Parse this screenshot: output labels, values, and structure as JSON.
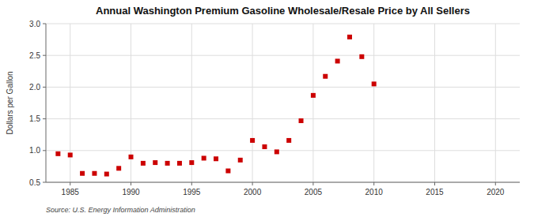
{
  "chart_data": {
    "type": "scatter",
    "title": "Annual Washington Premium Gasoline Wholesale/Resale Price by All Sellers",
    "ylabel": "Dollars per Gallon",
    "source": "Source: U.S. Energy Information Administration",
    "x": [
      1984,
      1985,
      1986,
      1987,
      1988,
      1989,
      1990,
      1991,
      1992,
      1993,
      1994,
      1995,
      1996,
      1997,
      1998,
      1999,
      2000,
      2001,
      2002,
      2003,
      2004,
      2005,
      2006,
      2007,
      2008,
      2009,
      2010
    ],
    "values": [
      0.95,
      0.93,
      0.64,
      0.64,
      0.63,
      0.72,
      0.9,
      0.8,
      0.81,
      0.8,
      0.8,
      0.81,
      0.88,
      0.87,
      0.68,
      0.85,
      1.16,
      1.06,
      0.98,
      1.16,
      1.47,
      1.87,
      2.17,
      2.41,
      2.79,
      2.48,
      2.05
    ],
    "color": "#cc0000",
    "marker": "square",
    "xlim": [
      1983,
      2022
    ],
    "ylim": [
      0.5,
      3.0
    ],
    "xticks": [
      1985,
      1990,
      1995,
      2000,
      2005,
      2010,
      2015,
      2020
    ],
    "yticks": [
      0.5,
      {
        "value": 1,
        "label": "1.0"
      },
      1.5,
      {
        "value": 2,
        "label": "2.0"
      },
      2.5,
      {
        "value": 3,
        "label": "3.0"
      }
    ],
    "grid": true
  }
}
